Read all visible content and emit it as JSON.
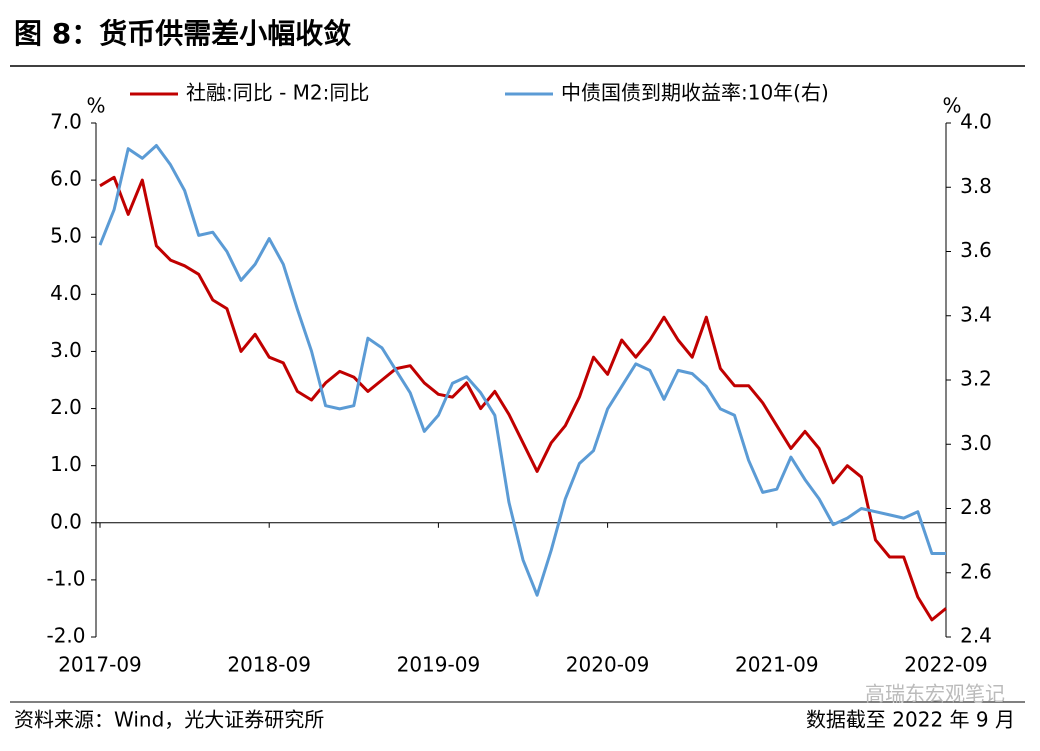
{
  "chart_data": {
    "type": "line",
    "title": "图 8：货币供需差小幅收敛",
    "source": "资料来源：Wind，光大证券研究所",
    "note": "数据截至 2022 年 9 月",
    "watermark": "高瑞东宏观笔记",
    "y_unit": "%",
    "y2_unit": "%",
    "categories": [
      "2017-09",
      null,
      null,
      null,
      null,
      null,
      null,
      null,
      null,
      null,
      null,
      null,
      "2018-09",
      null,
      null,
      null,
      null,
      null,
      null,
      null,
      null,
      null,
      null,
      null,
      "2019-09",
      null,
      null,
      null,
      null,
      null,
      null,
      null,
      null,
      null,
      null,
      null,
      "2020-09",
      null,
      null,
      null,
      null,
      null,
      null,
      null,
      null,
      null,
      null,
      null,
      "2021-09",
      null,
      null,
      null,
      null,
      null,
      null,
      null,
      null,
      null,
      null,
      null,
      "2022-09"
    ],
    "ylim": [
      -2,
      7
    ],
    "yticks": [
      {
        "value": 7,
        "label": "7.0"
      },
      {
        "value": 6,
        "label": "6.0"
      },
      {
        "value": 5,
        "label": "5.0"
      },
      {
        "value": 4,
        "label": "4.0"
      },
      {
        "value": 3,
        "label": "3.0"
      },
      {
        "value": 2,
        "label": "2.0"
      },
      {
        "value": 1,
        "label": "1.0"
      },
      {
        "value": 0,
        "label": "0.0"
      },
      {
        "value": -1,
        "label": "-1.0"
      },
      {
        "value": -2,
        "label": "-2.0"
      }
    ],
    "y2lim": [
      2.4,
      4
    ],
    "y2ticks": [
      {
        "value": 4,
        "label": "4.0"
      },
      3.8,
      3.6,
      3.4,
      3.2,
      {
        "value": 3,
        "label": "3.0"
      },
      2.8,
      2.6,
      2.4
    ],
    "series": [
      {
        "name": "社融:同比 - M2:同比",
        "color": "#c00000",
        "values": [
          5.9,
          6.05,
          5.4,
          6.0,
          4.85,
          4.6,
          4.5,
          4.35,
          3.9,
          3.75,
          3.0,
          3.3,
          2.9,
          2.8,
          2.3,
          2.15,
          2.45,
          2.65,
          2.55,
          2.3,
          2.5,
          2.7,
          2.75,
          2.45,
          2.25,
          2.2,
          2.45,
          2.0,
          2.3,
          1.9,
          1.4,
          0.9,
          1.4,
          1.7,
          2.2,
          2.9,
          2.6,
          3.2,
          2.9,
          3.2,
          3.6,
          3.2,
          2.9,
          3.6,
          2.7,
          2.4,
          2.4,
          2.1,
          1.7,
          1.3,
          1.6,
          1.3,
          0.7,
          1.0,
          0.8,
          -0.3,
          -0.6,
          -0.6,
          -1.3,
          -1.7,
          -1.5
        ]
      },
      {
        "name": "中债国债到期收益率:10年(右)",
        "color": "#5b9bd5",
        "axis": "y2",
        "values": [
          3.62,
          3.73,
          3.92,
          3.89,
          3.93,
          3.87,
          3.79,
          3.65,
          3.66,
          3.6,
          3.51,
          3.56,
          3.64,
          3.56,
          3.42,
          3.29,
          3.12,
          3.11,
          3.12,
          3.33,
          3.3,
          3.23,
          3.16,
          3.04,
          3.09,
          3.19,
          3.21,
          3.16,
          3.09,
          2.82,
          2.64,
          2.53,
          2.67,
          2.83,
          2.94,
          2.98,
          3.11,
          3.18,
          3.25,
          3.23,
          3.14,
          3.23,
          3.22,
          3.18,
          3.11,
          3.09,
          2.95,
          2.85,
          2.86,
          2.96,
          2.89,
          2.83,
          2.75,
          2.77,
          2.8,
          2.79,
          2.78,
          2.77,
          2.79,
          2.66,
          2.66
        ]
      }
    ]
  }
}
